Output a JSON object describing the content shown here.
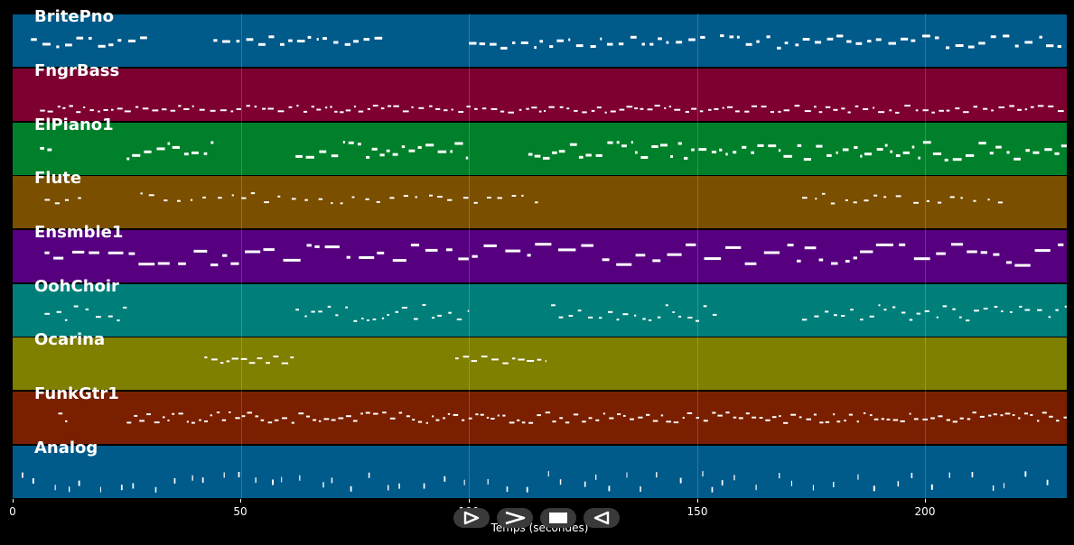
{
  "tracks": [
    {
      "name": "BritePno",
      "color": "#005a8a"
    },
    {
      "name": "FngrBass",
      "color": "#7d0030"
    },
    {
      "name": "ElPiano1",
      "color": "#00802a"
    },
    {
      "name": "Flute",
      "color": "#7a4f00"
    },
    {
      "name": "Ensmble1",
      "color": "#560080"
    },
    {
      "name": "OohChoir",
      "color": "#007f7a"
    },
    {
      "name": "Ocarina",
      "color": "#7f7f00"
    },
    {
      "name": "FunkGtr1",
      "color": "#7a2000"
    },
    {
      "name": "Analog",
      "color": "#005a8a"
    }
  ],
  "x_axis": {
    "label": "Temps (secondes)",
    "min": 0,
    "max": 231,
    "ticks": [
      {
        "value": 0,
        "label": "0"
      },
      {
        "value": 50,
        "label": "50"
      },
      {
        "value": 100,
        "label": "100"
      },
      {
        "value": 150,
        "label": "150"
      },
      {
        "value": 200,
        "label": "200"
      }
    ]
  },
  "controls": [
    {
      "name": "play-from-start-icon"
    },
    {
      "name": "play-icon"
    },
    {
      "name": "stop-icon"
    },
    {
      "name": "rewind-icon"
    }
  ],
  "note_color": "#ffffff"
}
